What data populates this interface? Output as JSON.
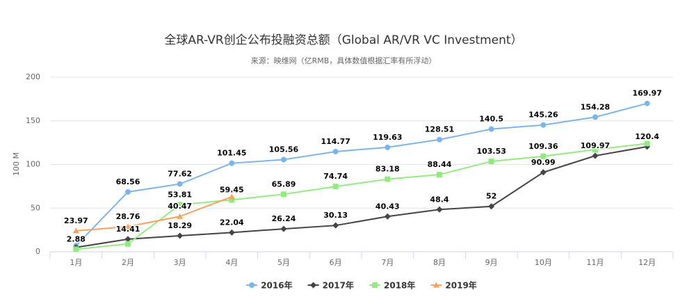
{
  "chart_data": {
    "type": "line",
    "title": "全球AR-VR创企公布投融资总额（Global AR/VR VC Investment）",
    "subtitle": "来源：映维网（亿RMB，具体数值根据汇率有所浮动）",
    "y_label": "100 M",
    "categories": [
      "1月",
      "2月",
      "3月",
      "4月",
      "5月",
      "6月",
      "7月",
      "8月",
      "9月",
      "10月",
      "11月",
      "12月"
    ],
    "ylim": [
      0,
      200
    ],
    "yticks": [
      0,
      50,
      100,
      150,
      200
    ],
    "grid": true,
    "legend": "bottom",
    "series": [
      {
        "name": "2016年",
        "color": "#7cb5ec",
        "marker": "circle",
        "values": [
          7,
          68.56,
          77.62,
          101.45,
          105.56,
          114.77,
          119.63,
          128.51,
          140.5,
          145.26,
          154.28,
          169.97
        ],
        "value_labels": [
          null,
          "68.56",
          "77.62",
          "101.45",
          "105.56",
          "114.77",
          "119.63",
          "128.51",
          "140.5",
          "145.26",
          "154.28",
          "169.97"
        ]
      },
      {
        "name": "2017年",
        "color": "#434348",
        "marker": "diamond",
        "values": [
          5,
          14.41,
          18.29,
          22.04,
          26.24,
          30.13,
          40.43,
          48.4,
          52,
          90.99,
          109.97,
          120.4
        ],
        "value_labels": [
          null,
          "14.41",
          "18.29",
          "22.04",
          "26.24",
          "30.13",
          "40.43",
          "48.4",
          "52",
          "90.99",
          "109.97",
          "120.4"
        ]
      },
      {
        "name": "2018年",
        "color": "#90ed7d",
        "marker": "square",
        "values": [
          2.88,
          9,
          53.81,
          59.45,
          65.89,
          74.74,
          83.18,
          88.44,
          103.53,
          109.36,
          117,
          124
        ],
        "value_labels": [
          "2.88",
          null,
          "53.81",
          "59.45",
          "65.89",
          "74.74",
          "83.18",
          "88.44",
          "103.53",
          "109.36",
          null,
          null
        ]
      },
      {
        "name": "2019年",
        "color": "#f7a35c",
        "marker": "triangle",
        "values": [
          23.97,
          28.76,
          40.47,
          63,
          null,
          null,
          null,
          null,
          null,
          null,
          null,
          null
        ],
        "value_labels": [
          "23.97",
          "28.76",
          "40.47",
          null,
          null,
          null,
          null,
          null,
          null,
          null,
          null,
          null
        ]
      }
    ]
  }
}
